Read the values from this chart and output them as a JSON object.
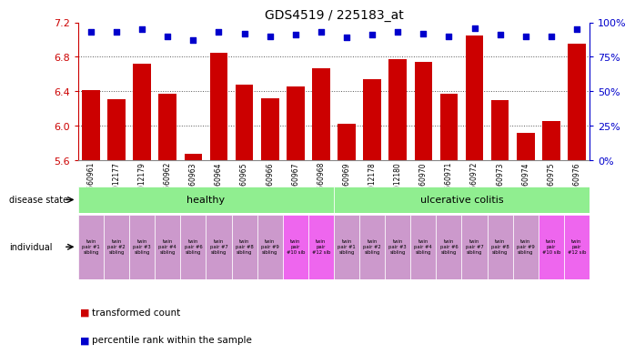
{
  "title": "GDS4519 / 225183_at",
  "sample_ids": [
    "GSM560961",
    "GSM1012177",
    "GSM1012179",
    "GSM560962",
    "GSM560963",
    "GSM560964",
    "GSM560965",
    "GSM560966",
    "GSM560967",
    "GSM560968",
    "GSM560969",
    "GSM1012178",
    "GSM1012180",
    "GSM560970",
    "GSM560971",
    "GSM560972",
    "GSM560973",
    "GSM560974",
    "GSM560975",
    "GSM560976"
  ],
  "bar_values": [
    6.41,
    6.31,
    6.72,
    6.37,
    5.68,
    6.85,
    6.48,
    6.32,
    6.46,
    6.67,
    6.02,
    6.54,
    6.77,
    6.74,
    6.37,
    7.05,
    6.3,
    5.92,
    6.06,
    6.95
  ],
  "percentile_values": [
    93,
    93,
    95,
    90,
    87,
    93,
    92,
    90,
    91,
    93,
    89,
    91,
    93,
    92,
    90,
    96,
    91,
    90,
    90,
    95
  ],
  "ylim": [
    5.6,
    7.2
  ],
  "y_ticks": [
    5.6,
    6.0,
    6.4,
    6.8,
    7.2
  ],
  "right_yticks": [
    0,
    25,
    50,
    75,
    100
  ],
  "right_ylabels": [
    "0%",
    "25%",
    "50%",
    "75%",
    "100%"
  ],
  "bar_color": "#cc0000",
  "dot_color": "#0000cc",
  "healthy_count": 10,
  "disease_color": "#90ee90",
  "uc_color": "#90ee90",
  "individual_labels": [
    "twin\npair #1\nsibling",
    "twin\npair #2\nsibling",
    "twin\npair #3\nsibling",
    "twin\npair #4\nsibling",
    "twin\npair #6\nsibling",
    "twin\npair #7\nsibling",
    "twin\npair #8\nsibling",
    "twin\npair #9\nsibling",
    "twin\npair\n#10 sib",
    "twin\npair\n#12 sib",
    "twin\npair #1\nsibling",
    "twin\npair #2\nsibling",
    "twin\npair #3\nsibling",
    "twin\npair #4\nsibling",
    "twin\npair #6\nsibling",
    "twin\npair #7\nsibling",
    "twin\npair #8\nsibling",
    "twin\npair #9\nsibling",
    "twin\npair\n#10 sib",
    "twin\npair\n#12 sib"
  ],
  "individual_colors": [
    "#cc99cc",
    "#cc99cc",
    "#cc99cc",
    "#cc99cc",
    "#cc99cc",
    "#cc99cc",
    "#cc99cc",
    "#cc99cc",
    "#ee66ee",
    "#ee66ee",
    "#cc99cc",
    "#cc99cc",
    "#cc99cc",
    "#cc99cc",
    "#cc99cc",
    "#cc99cc",
    "#cc99cc",
    "#cc99cc",
    "#ee66ee",
    "#ee66ee"
  ],
  "axis_color": "#cc0000",
  "right_axis_color": "#0000cc",
  "dotted_line_color": "#555555"
}
